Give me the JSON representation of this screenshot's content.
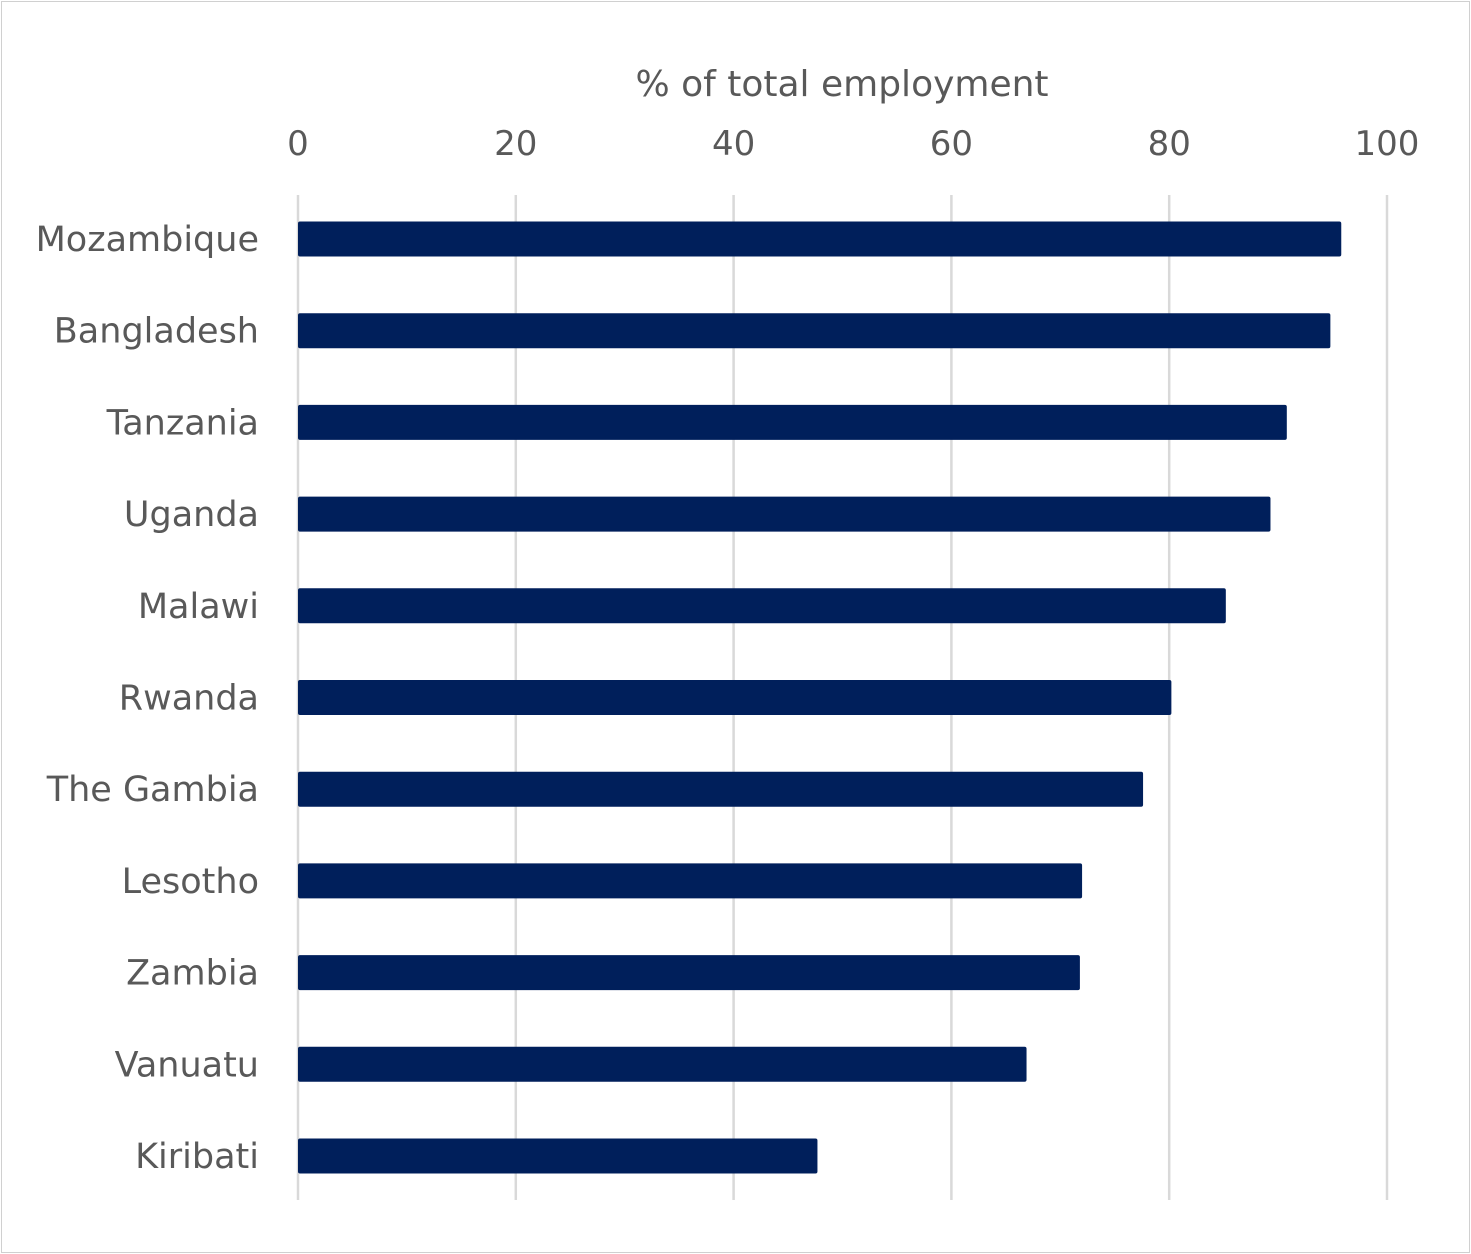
{
  "chart_data": {
    "type": "bar",
    "orientation": "horizontal",
    "title": "",
    "xlabel": "% of total employment",
    "ylabel": "",
    "xlim": [
      0,
      100
    ],
    "x_ticks": [
      "0",
      "20",
      "40",
      "60",
      "80",
      "100"
    ],
    "x_axis_position": "top",
    "grid": true,
    "categories": [
      "Mozambique",
      "Bangladesh",
      "Tanzania",
      "Uganda",
      "Malawi",
      "Rwanda",
      "The Gambia",
      "Lesotho",
      "Zambia",
      "Vanuatu",
      "Kiribati"
    ],
    "values": [
      95.8,
      94.8,
      90.8,
      89.3,
      85.2,
      80.2,
      77.6,
      72.0,
      71.8,
      66.9,
      47.7
    ],
    "bar_color": "#001f5b",
    "gridline_color": "#d9d9d9"
  }
}
